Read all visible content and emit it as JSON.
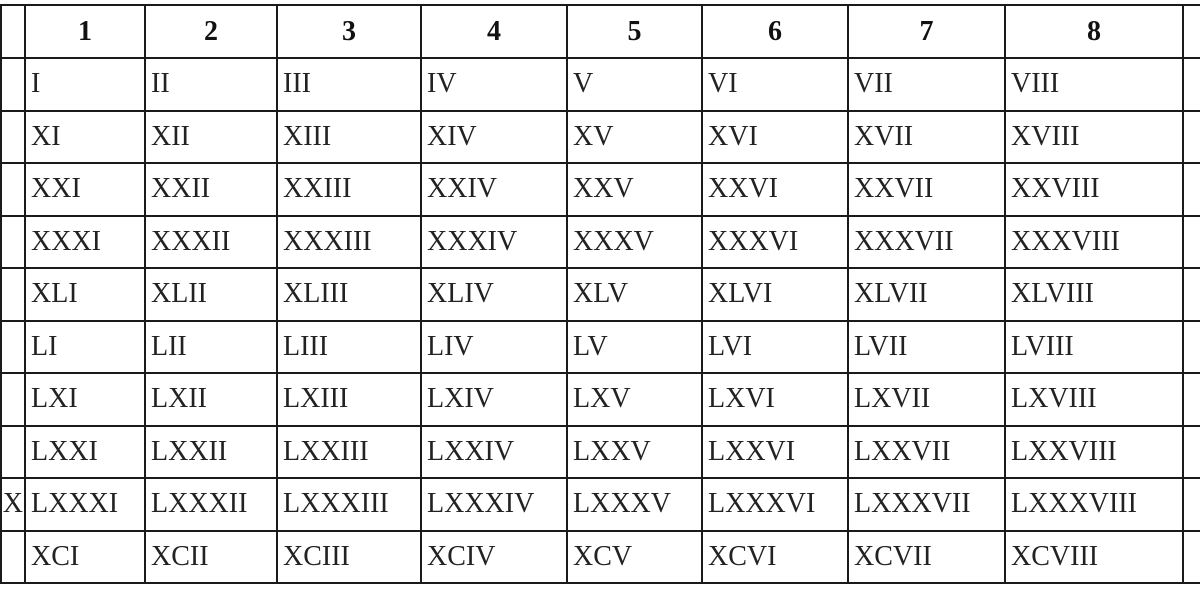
{
  "table": {
    "headers": [
      "",
      "1",
      "2",
      "3",
      "4",
      "5",
      "6",
      "7",
      "8",
      ""
    ],
    "rows": [
      [
        "",
        "I",
        "II",
        "III",
        "IV",
        "V",
        "VI",
        "VII",
        "VIII",
        ""
      ],
      [
        "",
        "XI",
        "XII",
        "XIII",
        "XIV",
        "XV",
        "XVI",
        "XVII",
        "XVIII",
        ""
      ],
      [
        "",
        "XXI",
        "XXII",
        "XXIII",
        "XXIV",
        "XXV",
        "XXVI",
        "XXVII",
        "XXVIII",
        ""
      ],
      [
        "",
        "XXXI",
        "XXXII",
        "XXXIII",
        "XXXIV",
        "XXXV",
        "XXXVI",
        "XXXVII",
        "XXXVIII",
        ""
      ],
      [
        "",
        "XLI",
        "XLII",
        "XLIII",
        "XLIV",
        "XLV",
        "XLVI",
        "XLVII",
        "XLVIII",
        ""
      ],
      [
        "",
        "LI",
        "LII",
        "LIII",
        "LIV",
        "LV",
        "LVI",
        "LVII",
        "LVIII",
        ""
      ],
      [
        "",
        "LXI",
        "LXII",
        "LXIII",
        "LXIV",
        "LXV",
        "LXVI",
        "LXVII",
        "LXVIII",
        ""
      ],
      [
        "",
        "LXXI",
        "LXXII",
        "LXXIII",
        "LXXIV",
        "LXXV",
        "LXXVI",
        "LXXVII",
        "LXXVIII",
        ""
      ],
      [
        "X",
        "LXXXI",
        "LXXXII",
        "LXXXIII",
        "LXXXIV",
        "LXXXV",
        "LXXXVI",
        "LXXXVII",
        "LXXXVIII",
        ""
      ],
      [
        "",
        "XCI",
        "XCII",
        "XCIII",
        "XCIV",
        "XCV",
        "XCVI",
        "XCVII",
        "XCVIII",
        ""
      ]
    ]
  }
}
